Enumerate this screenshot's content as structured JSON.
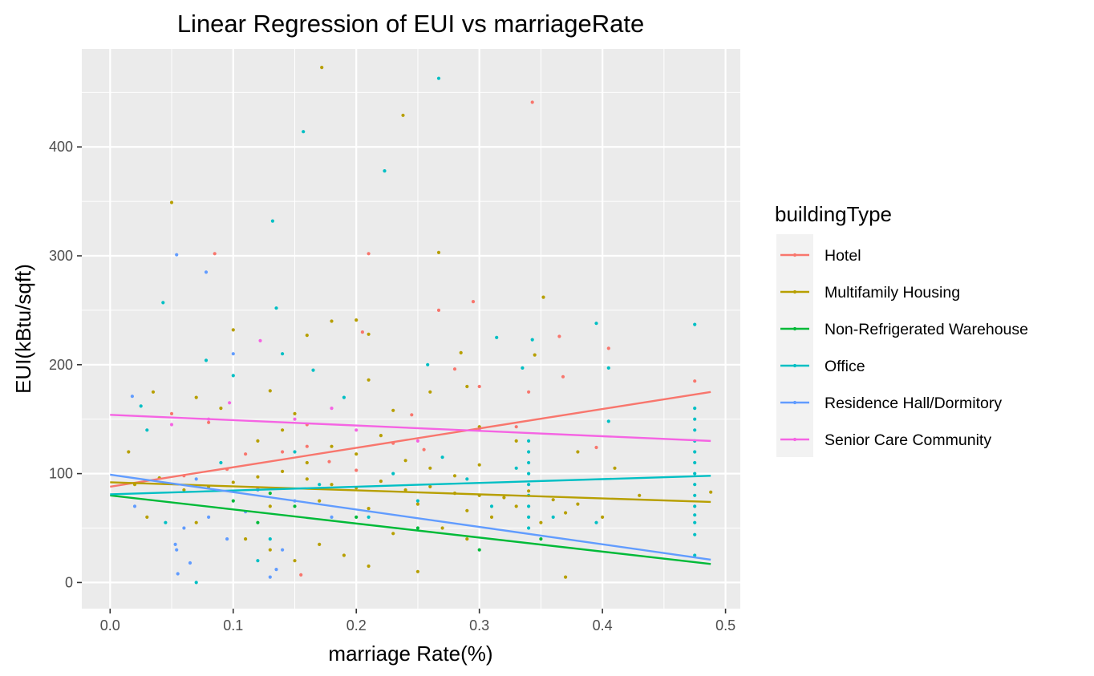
{
  "chart_data": {
    "type": "scatter",
    "title": "Linear Regression of EUI vs marriageRate",
    "xlabel": "marriage Rate(%)",
    "ylabel": "EUI(kBtu/sqft)",
    "xlim": [
      -0.023,
      0.512
    ],
    "ylim": [
      -24,
      490
    ],
    "x_ticks": [
      "0.0",
      "0.1",
      "0.2",
      "0.3",
      "0.4",
      "0.5"
    ],
    "y_ticks": [
      "0",
      "100",
      "200",
      "300",
      "400"
    ],
    "grid": true,
    "legend": {
      "title": "buildingType",
      "placement": "right"
    },
    "series": [
      {
        "name": "Hotel",
        "color": "#F8766D",
        "fit": {
          "x": [
            0.0,
            0.488
          ],
          "y": [
            88,
            175
          ]
        },
        "points": [
          [
            0.085,
            302
          ],
          [
            0.21,
            302
          ],
          [
            0.295,
            258
          ],
          [
            0.343,
            441
          ],
          [
            0.267,
            250
          ],
          [
            0.365,
            226
          ],
          [
            0.405,
            215
          ],
          [
            0.368,
            189
          ],
          [
            0.475,
            185
          ],
          [
            0.395,
            124
          ],
          [
            0.05,
            155
          ],
          [
            0.14,
            120
          ],
          [
            0.178,
            111
          ],
          [
            0.23,
            128
          ],
          [
            0.245,
            154
          ],
          [
            0.3,
            180
          ],
          [
            0.06,
            98
          ],
          [
            0.095,
            104
          ],
          [
            0.11,
            118
          ],
          [
            0.16,
            125
          ],
          [
            0.2,
            103
          ],
          [
            0.12,
            86
          ],
          [
            0.255,
            122
          ],
          [
            0.33,
            143
          ],
          [
            0.155,
            7
          ],
          [
            0.34,
            175
          ],
          [
            0.08,
            147
          ],
          [
            0.28,
            196
          ],
          [
            0.16,
            145
          ],
          [
            0.205,
            230
          ]
        ]
      },
      {
        "name": "Multifamily Housing",
        "color": "#B79F00",
        "fit": {
          "x": [
            0.0,
            0.488
          ],
          "y": [
            92,
            74
          ]
        },
        "points": [
          [
            0.05,
            349
          ],
          [
            0.172,
            473
          ],
          [
            0.238,
            429
          ],
          [
            0.267,
            303
          ],
          [
            0.352,
            262
          ],
          [
            0.1,
            232
          ],
          [
            0.21,
            228
          ],
          [
            0.2,
            241
          ],
          [
            0.18,
            240
          ],
          [
            0.16,
            227
          ],
          [
            0.285,
            211
          ],
          [
            0.345,
            209
          ],
          [
            0.13,
            176
          ],
          [
            0.21,
            186
          ],
          [
            0.26,
            175
          ],
          [
            0.29,
            180
          ],
          [
            0.07,
            170
          ],
          [
            0.09,
            160
          ],
          [
            0.15,
            155
          ],
          [
            0.23,
            158
          ],
          [
            0.3,
            143
          ],
          [
            0.33,
            130
          ],
          [
            0.38,
            120
          ],
          [
            0.41,
            105
          ],
          [
            0.43,
            80
          ],
          [
            0.488,
            83
          ],
          [
            0.02,
            90
          ],
          [
            0.04,
            96
          ],
          [
            0.06,
            85
          ],
          [
            0.08,
            88
          ],
          [
            0.1,
            92
          ],
          [
            0.12,
            97
          ],
          [
            0.14,
            102
          ],
          [
            0.16,
            95
          ],
          [
            0.18,
            90
          ],
          [
            0.2,
            87
          ],
          [
            0.22,
            93
          ],
          [
            0.24,
            85
          ],
          [
            0.26,
            88
          ],
          [
            0.28,
            82
          ],
          [
            0.3,
            80
          ],
          [
            0.32,
            78
          ],
          [
            0.34,
            84
          ],
          [
            0.36,
            76
          ],
          [
            0.38,
            72
          ],
          [
            0.03,
            60
          ],
          [
            0.07,
            55
          ],
          [
            0.11,
            40
          ],
          [
            0.13,
            30
          ],
          [
            0.15,
            20
          ],
          [
            0.17,
            35
          ],
          [
            0.19,
            25
          ],
          [
            0.21,
            15
          ],
          [
            0.23,
            45
          ],
          [
            0.25,
            10
          ],
          [
            0.27,
            50
          ],
          [
            0.29,
            40
          ],
          [
            0.31,
            60
          ],
          [
            0.35,
            55
          ],
          [
            0.37,
            5
          ],
          [
            0.12,
            130
          ],
          [
            0.14,
            140
          ],
          [
            0.16,
            110
          ],
          [
            0.18,
            125
          ],
          [
            0.2,
            118
          ],
          [
            0.22,
            135
          ],
          [
            0.24,
            112
          ],
          [
            0.26,
            105
          ],
          [
            0.28,
            98
          ],
          [
            0.3,
            108
          ],
          [
            0.13,
            70
          ],
          [
            0.17,
            75
          ],
          [
            0.21,
            68
          ],
          [
            0.25,
            72
          ],
          [
            0.29,
            66
          ],
          [
            0.33,
            70
          ],
          [
            0.37,
            64
          ],
          [
            0.4,
            60
          ],
          [
            0.015,
            120
          ],
          [
            0.035,
            175
          ]
        ]
      },
      {
        "name": "Non-Refrigerated Warehouse",
        "color": "#00BA38",
        "fit": {
          "x": [
            0.0,
            0.488
          ],
          "y": [
            80,
            17
          ]
        },
        "points": [
          [
            0.13,
            82
          ],
          [
            0.15,
            70
          ],
          [
            0.2,
            60
          ],
          [
            0.25,
            50
          ],
          [
            0.3,
            30
          ],
          [
            0.35,
            40
          ],
          [
            0.1,
            75
          ],
          [
            0.12,
            55
          ]
        ]
      },
      {
        "name": "Office",
        "color": "#00BFC4",
        "fit": {
          "x": [
            0.0,
            0.488
          ],
          "y": [
            81,
            98
          ]
        },
        "points": [
          [
            0.267,
            463
          ],
          [
            0.157,
            414
          ],
          [
            0.223,
            378
          ],
          [
            0.132,
            332
          ],
          [
            0.135,
            252
          ],
          [
            0.043,
            257
          ],
          [
            0.395,
            238
          ],
          [
            0.475,
            237
          ],
          [
            0.314,
            225
          ],
          [
            0.343,
            223
          ],
          [
            0.405,
            197
          ],
          [
            0.335,
            197
          ],
          [
            0.078,
            204
          ],
          [
            0.1,
            190
          ],
          [
            0.165,
            195
          ],
          [
            0.258,
            200
          ],
          [
            0.475,
            160
          ],
          [
            0.475,
            150
          ],
          [
            0.475,
            140
          ],
          [
            0.475,
            130
          ],
          [
            0.475,
            120
          ],
          [
            0.475,
            110
          ],
          [
            0.475,
            100
          ],
          [
            0.475,
            90
          ],
          [
            0.475,
            80
          ],
          [
            0.475,
            70
          ],
          [
            0.475,
            62
          ],
          [
            0.475,
            55
          ],
          [
            0.475,
            44
          ],
          [
            0.475,
            25
          ],
          [
            0.34,
            130
          ],
          [
            0.34,
            120
          ],
          [
            0.34,
            110
          ],
          [
            0.34,
            100
          ],
          [
            0.34,
            90
          ],
          [
            0.34,
            80
          ],
          [
            0.34,
            70
          ],
          [
            0.34,
            60
          ],
          [
            0.34,
            50
          ],
          [
            0.025,
            162
          ],
          [
            0.03,
            140
          ],
          [
            0.045,
            55
          ],
          [
            0.07,
            0
          ],
          [
            0.09,
            110
          ],
          [
            0.12,
            20
          ],
          [
            0.13,
            40
          ],
          [
            0.15,
            120
          ],
          [
            0.17,
            90
          ],
          [
            0.19,
            170
          ],
          [
            0.21,
            60
          ],
          [
            0.23,
            100
          ],
          [
            0.25,
            75
          ],
          [
            0.27,
            115
          ],
          [
            0.29,
            95
          ],
          [
            0.31,
            70
          ],
          [
            0.33,
            105
          ],
          [
            0.36,
            60
          ],
          [
            0.395,
            55
          ],
          [
            0.405,
            148
          ],
          [
            0.14,
            210
          ]
        ]
      },
      {
        "name": "Residence Hall/Dormitory",
        "color": "#619CFF",
        "fit": {
          "x": [
            0.0,
            0.488
          ],
          "y": [
            99,
            21
          ]
        },
        "points": [
          [
            0.054,
            301
          ],
          [
            0.078,
            285
          ],
          [
            0.1,
            210
          ],
          [
            0.018,
            171
          ],
          [
            0.053,
            35
          ],
          [
            0.054,
            30
          ],
          [
            0.055,
            8
          ],
          [
            0.065,
            18
          ],
          [
            0.08,
            60
          ],
          [
            0.095,
            40
          ],
          [
            0.13,
            5
          ],
          [
            0.135,
            12
          ],
          [
            0.14,
            30
          ],
          [
            0.12,
            85
          ],
          [
            0.15,
            75
          ],
          [
            0.18,
            60
          ],
          [
            0.06,
            50
          ],
          [
            0.07,
            95
          ],
          [
            0.02,
            70
          ],
          [
            0.11,
            65
          ]
        ]
      },
      {
        "name": "Senior Care Community",
        "color": "#F564E3",
        "fit": {
          "x": [
            0.0,
            0.488
          ],
          "y": [
            154,
            130
          ]
        },
        "points": [
          [
            0.122,
            222
          ],
          [
            0.097,
            165
          ],
          [
            0.08,
            150
          ],
          [
            0.15,
            150
          ],
          [
            0.2,
            140
          ],
          [
            0.25,
            130
          ],
          [
            0.3,
            140
          ],
          [
            0.05,
            145
          ],
          [
            0.18,
            160
          ]
        ]
      }
    ]
  }
}
